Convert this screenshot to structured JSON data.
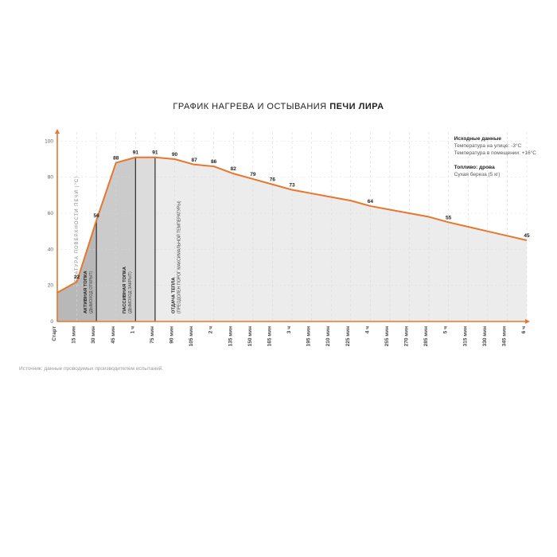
{
  "title_prefix": "ГРАФИК НАГРЕВА И ОСТЫВАНИЯ ",
  "title_bold": "ПЕЧИ ЛИРА",
  "type": "area",
  "y_axis": {
    "title": "ТЕМПЕРАТУРА ПОВЕРХНОСТИ ПЕЧИ (°C)",
    "min": 0,
    "max": 105,
    "ticks": [
      0,
      20,
      40,
      60,
      80,
      100
    ]
  },
  "time_points": [
    "Старт",
    "15 мин",
    "30 мин",
    "45 мин",
    "1 ч",
    "75 мин",
    "90 мин",
    "105 мин",
    "2 ч",
    "135 мин",
    "150 мин",
    "165 мин",
    "3 ч",
    "195 мин",
    "210 мин",
    "225 мин",
    "4 ч",
    "255 мин",
    "270 мин",
    "285 мин",
    "5 ч",
    "315 мин",
    "330 мин",
    "345 мин",
    "6 ч"
  ],
  "bold_ticks": [
    0,
    4,
    8,
    12,
    16,
    20,
    24
  ],
  "values": [
    16,
    22,
    56,
    88,
    91,
    91,
    90,
    87,
    86,
    82,
    79,
    76,
    73,
    71,
    69,
    67,
    64,
    62,
    60,
    58,
    55,
    52.5,
    50,
    47.5,
    45
  ],
  "labeled_points": [
    1,
    2,
    3,
    4,
    5,
    6,
    7,
    8,
    9,
    10,
    11,
    12,
    16,
    20,
    24
  ],
  "phase_fills": [
    {
      "from": 0,
      "to": 2,
      "color": "#b8b8b8"
    },
    {
      "from": 2,
      "to": 4,
      "color": "#cbcbcb"
    },
    {
      "from": 4,
      "to": 5,
      "color": "#dcdcdc"
    },
    {
      "from": 5,
      "to": 24,
      "color": "#ececec"
    }
  ],
  "phase_dividers": [
    2,
    4,
    5
  ],
  "phase_labels": [
    {
      "at": 1.5,
      "title": "АКТИВНАЯ ТОПКА",
      "sub": "(ДЫМОХОД ОТКРЫТ)"
    },
    {
      "at": 3.5,
      "title": "ПАССИВНАЯ ТОПКА",
      "sub": "(ДЫМОХОД ЗАКРЫТ)"
    },
    {
      "at": 6.0,
      "title": "ОТДАЧА ТЕПЛА",
      "sub": "(ПРЕОДОЛЕН ПОРОГ МАКСИМАЛЬНОЙ ТЕМПЕРАТУРЫ)"
    }
  ],
  "colors": {
    "line": "#e8762c",
    "axis": "#e8762c",
    "grid": "#d9d9d9",
    "divider": "#2b2b2b",
    "bg": "#ffffff"
  },
  "line_width": 2,
  "info": {
    "h1": "Исходные данные",
    "l1": "Температура на улице: -3°C",
    "l2": "Температура в помещении: +16°C",
    "h2": "Топливо: дрова",
    "l3": "Сухая береза (5 кг)"
  },
  "source": "Источник: данные проводимых производителем испытаний."
}
